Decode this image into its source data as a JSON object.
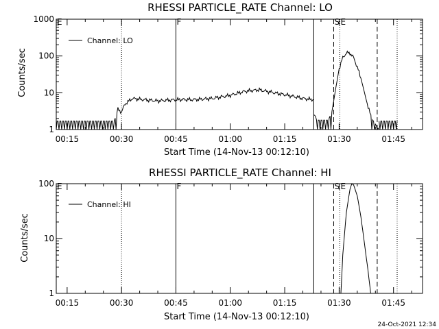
{
  "chart_data": [
    {
      "type": "line",
      "title": "RHESSI PARTICLE_RATE Channel: LO",
      "xlabel": "Start Time (14-Nov-13 00:12:10)",
      "ylabel": "Counts/sec",
      "y_scale": "log",
      "ylim": [
        1,
        1000
      ],
      "xlim_minutes": [
        12,
        113
      ],
      "yticks": [
        {
          "v": 1,
          "label": "1"
        },
        {
          "v": 10,
          "label": "10"
        },
        {
          "v": 100,
          "label": "100"
        },
        {
          "v": 1000,
          "label": "1000"
        }
      ],
      "xticks": [
        "00:15",
        "00:30",
        "00:45",
        "01:00",
        "01:15",
        "01:30",
        "01:45"
      ],
      "xticks_minutes": [
        15,
        30,
        45,
        60,
        75,
        90,
        105
      ],
      "legend": {
        "label": "Channel: LO",
        "position": "top-left"
      },
      "markers": [
        {
          "t": 12,
          "label": "E",
          "style": "none"
        },
        {
          "t": 30,
          "label": "",
          "style": "dotted"
        },
        {
          "t": 45,
          "label": "F",
          "style": "solid"
        },
        {
          "t": 83,
          "label": "",
          "style": "solid"
        },
        {
          "t": 88.5,
          "label": "S",
          "style": "dashed"
        },
        {
          "t": 90.2,
          "label": "E",
          "style": "dotted"
        },
        {
          "t": 100.5,
          "label": "",
          "style": "dashed"
        },
        {
          "t": 106,
          "label": "",
          "style": "dotted"
        }
      ],
      "series": [
        {
          "name": "Channel: LO",
          "segments": [
            {
              "x": [
                12,
                28,
                29,
                30,
                31,
                33,
                36,
                40,
                45,
                50,
                55,
                60,
                64,
                68,
                72,
                76,
                80,
                83
              ],
              "y": [
                1.7,
                1.7,
                3.5,
                3.0,
                5.0,
                7.0,
                6.5,
                6.0,
                6.5,
                6.5,
                7.0,
                8.5,
                11,
                12,
                10,
                8.5,
                7.0,
                6.5
              ]
            },
            {
              "x": [
                83,
                84,
                85,
                86,
                87,
                88,
                89,
                90,
                91,
                92,
                93,
                94,
                95,
                96,
                97,
                98,
                99,
                100,
                101
              ],
              "y": [
                2.5,
                1.8,
                1.8,
                1.8,
                1.8,
                3,
                12,
                45,
                90,
                120,
                120,
                90,
                50,
                25,
                10,
                4,
                2,
                1.4,
                1.0
              ]
            },
            {
              "x": [
                101,
                102,
                103,
                104,
                105,
                106
              ],
              "y": [
                1.7,
                1.7,
                1.7,
                1.7,
                1.7,
                1.7
              ]
            }
          ]
        }
      ]
    },
    {
      "type": "line",
      "title": "RHESSI PARTICLE_RATE Channel: HI",
      "xlabel": "Start Time (14-Nov-13 00:12:10)",
      "ylabel": "Counts/sec",
      "y_scale": "log",
      "ylim": [
        1,
        100
      ],
      "xlim_minutes": [
        12,
        113
      ],
      "yticks": [
        {
          "v": 1,
          "label": "1"
        },
        {
          "v": 10,
          "label": "10"
        },
        {
          "v": 100,
          "label": "100"
        }
      ],
      "xticks": [
        "00:15",
        "00:30",
        "00:45",
        "01:00",
        "01:15",
        "01:30",
        "01:45"
      ],
      "xticks_minutes": [
        15,
        30,
        45,
        60,
        75,
        90,
        105
      ],
      "legend": {
        "label": "Channel: HI",
        "position": "top-left"
      },
      "markers": [
        {
          "t": 12,
          "label": "E",
          "style": "none"
        },
        {
          "t": 30,
          "label": "",
          "style": "dotted"
        },
        {
          "t": 45,
          "label": "F",
          "style": "solid"
        },
        {
          "t": 83,
          "label": "",
          "style": "solid"
        },
        {
          "t": 88.5,
          "label": "S",
          "style": "dashed"
        },
        {
          "t": 90.2,
          "label": "E",
          "style": "dotted"
        },
        {
          "t": 100.5,
          "label": "",
          "style": "dashed"
        },
        {
          "t": 106,
          "label": "",
          "style": "dotted"
        }
      ],
      "series": [
        {
          "name": "Channel: HI",
          "segments": [
            {
              "x": [
                90.5,
                91,
                92,
                93,
                93.5,
                94,
                95,
                96,
                97,
                98,
                98.7
              ],
              "y": [
                1.0,
                5,
                30,
                80,
                100,
                95,
                60,
                25,
                8,
                2.5,
                1.0
              ]
            }
          ]
        }
      ]
    }
  ],
  "timestamp": "24-Oct-2021 12:34"
}
